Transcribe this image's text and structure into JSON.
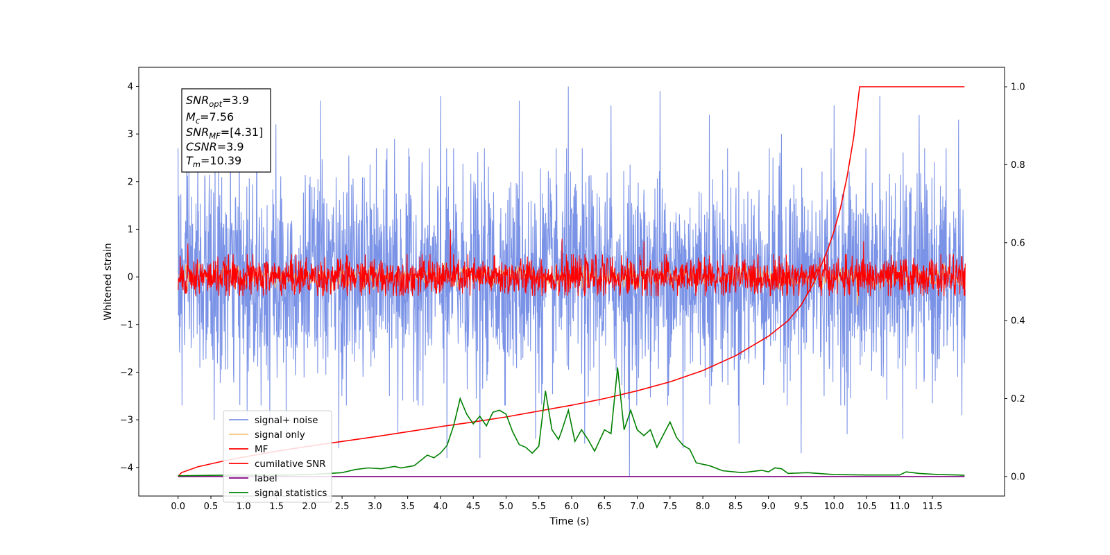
{
  "chart_data": {
    "type": "line",
    "xlabel": "Time (s)",
    "ylabel": "Whitened strain",
    "xlim": [
      -0.6,
      12.6
    ],
    "ylim": [
      -4.6,
      4.4
    ],
    "y2lim": [
      -0.05,
      1.05
    ],
    "x_ticks": [
      "0.0",
      "0.5",
      "1.0",
      "1.5",
      "2.0",
      "2.5",
      "3.0",
      "3.5",
      "4.0",
      "4.5",
      "5.0",
      "5.5",
      "6.0",
      "6.5",
      "7.0",
      "7.5",
      "8.0",
      "8.5",
      "9.0",
      "9.5",
      "10.0",
      "10.5",
      "11.0",
      "11.5"
    ],
    "y_ticks": [
      "−4",
      "−3",
      "−2",
      "−1",
      "0",
      "1",
      "2",
      "3",
      "4"
    ],
    "y2_ticks": [
      "0.0",
      "0.2",
      "0.4",
      "0.6",
      "0.8",
      "1.0"
    ],
    "grid": false,
    "legend_position": "lower-left",
    "info_box": {
      "snr_opt_var": "SNR",
      "snr_opt_sub": "opt",
      "snr_opt_value": "=3.9",
      "mc_var": "M",
      "mc_sub": "c",
      "mc_value": "=7.56",
      "snr_mf_var": "SNR",
      "snr_mf_sub": "MF",
      "snr_mf_value": "=[4.31]",
      "csnr_var": "CSNR",
      "csnr_value": "=3.9",
      "tm_var": "T",
      "tm_sub": "m",
      "tm_value": "=10.39"
    },
    "series": [
      {
        "name": "signal+ noise",
        "color": "#7b93e6",
        "axis": "left",
        "description_stats": {
          "t_start": 0.0,
          "t_end": 12.0,
          "typical_band": [
            -2.6,
            2.6
          ],
          "extremes": [
            -4.2,
            4.0
          ]
        },
        "peaks": [
          {
            "x": 0.0,
            "y": 2.7
          },
          {
            "x": 0.06,
            "y": -2.7
          },
          {
            "x": 0.3,
            "y": 3.0
          },
          {
            "x": 0.55,
            "y": -3.0
          },
          {
            "x": 0.8,
            "y": 3.0
          },
          {
            "x": 1.05,
            "y": -2.9
          },
          {
            "x": 1.2,
            "y": 3.4
          },
          {
            "x": 1.4,
            "y": -3.1
          },
          {
            "x": 1.49,
            "y": 3.2
          },
          {
            "x": 1.65,
            "y": -3.3
          },
          {
            "x": 2.17,
            "y": 3.7
          },
          {
            "x": 2.45,
            "y": -3.6
          },
          {
            "x": 3.3,
            "y": 2.9
          },
          {
            "x": 3.35,
            "y": -3.3
          },
          {
            "x": 4.0,
            "y": 3.8
          },
          {
            "x": 4.1,
            "y": -3.8
          },
          {
            "x": 4.6,
            "y": 3.9
          },
          {
            "x": 4.6,
            "y": -3.8
          },
          {
            "x": 5.2,
            "y": 3.7
          },
          {
            "x": 5.45,
            "y": -3.4
          },
          {
            "x": 5.95,
            "y": 4.0
          },
          {
            "x": 6.2,
            "y": -3.5
          },
          {
            "x": 6.6,
            "y": 3.6
          },
          {
            "x": 6.88,
            "y": -4.2
          },
          {
            "x": 7.35,
            "y": 3.9
          },
          {
            "x": 7.7,
            "y": -3.6
          },
          {
            "x": 8.1,
            "y": 3.4
          },
          {
            "x": 8.55,
            "y": -3.5
          },
          {
            "x": 9.2,
            "y": 3.0
          },
          {
            "x": 9.5,
            "y": -3.7
          },
          {
            "x": 10.0,
            "y": 3.6
          },
          {
            "x": 10.2,
            "y": -3.3
          },
          {
            "x": 10.7,
            "y": 3.8
          },
          {
            "x": 11.05,
            "y": -3.4
          },
          {
            "x": 11.3,
            "y": 3.4
          },
          {
            "x": 11.9,
            "y": 3.3
          },
          {
            "x": 11.95,
            "y": -2.9
          }
        ]
      },
      {
        "name": "signal only",
        "color": "#f5c67a",
        "axis": "left",
        "description_stats": {
          "t_start": 0.0,
          "t_end": 12.0,
          "typical_band": [
            -0.3,
            0.3
          ]
        },
        "peaks": [
          {
            "x": 10.35,
            "y": -0.6
          }
        ]
      },
      {
        "name": "MF",
        "color": "#ff0000",
        "axis": "left",
        "description_stats": {
          "t_start": 0.0,
          "t_end": 12.0,
          "typical_band": [
            -0.4,
            0.5
          ],
          "extremes": [
            -0.5,
            1.0
          ]
        },
        "peaks": [
          {
            "x": 0.15,
            "y": 0.7
          },
          {
            "x": 4.15,
            "y": 1.0
          },
          {
            "x": 5.85,
            "y": 0.8
          },
          {
            "x": 7.1,
            "y": 0.75
          },
          {
            "x": 10.45,
            "y": 0.75
          }
        ]
      },
      {
        "name": "cumilative SNR",
        "color": "#ff0000",
        "axis": "right",
        "points": [
          [
            0.0,
            0.0
          ],
          [
            0.05,
            0.01
          ],
          [
            0.3,
            0.025
          ],
          [
            0.7,
            0.04
          ],
          [
            1.0,
            0.05
          ],
          [
            1.5,
            0.065
          ],
          [
            2.0,
            0.078
          ],
          [
            2.5,
            0.09
          ],
          [
            3.0,
            0.102
          ],
          [
            3.5,
            0.115
          ],
          [
            4.0,
            0.128
          ],
          [
            4.5,
            0.14
          ],
          [
            5.0,
            0.153
          ],
          [
            5.5,
            0.168
          ],
          [
            6.0,
            0.183
          ],
          [
            6.5,
            0.2
          ],
          [
            7.0,
            0.22
          ],
          [
            7.5,
            0.243
          ],
          [
            8.0,
            0.272
          ],
          [
            8.5,
            0.31
          ],
          [
            9.0,
            0.36
          ],
          [
            9.3,
            0.4
          ],
          [
            9.5,
            0.44
          ],
          [
            9.7,
            0.5
          ],
          [
            9.9,
            0.58
          ],
          [
            10.0,
            0.63
          ],
          [
            10.1,
            0.69
          ],
          [
            10.2,
            0.77
          ],
          [
            10.3,
            0.87
          ],
          [
            10.39,
            1.0
          ],
          [
            11.5,
            1.0
          ],
          [
            11.99,
            1.0
          ]
        ]
      },
      {
        "name": "label",
        "color": "#800080",
        "axis": "right",
        "points": [
          [
            0.0,
            0.0
          ],
          [
            11.99,
            0.0
          ]
        ]
      },
      {
        "name": "signal statistics",
        "color": "#008000",
        "axis": "right",
        "points": [
          [
            0.0,
            0.002
          ],
          [
            0.5,
            0.003
          ],
          [
            1.0,
            0.004
          ],
          [
            1.5,
            0.003
          ],
          [
            2.0,
            0.005
          ],
          [
            2.5,
            0.01
          ],
          [
            2.7,
            0.018
          ],
          [
            2.9,
            0.022
          ],
          [
            3.1,
            0.02
          ],
          [
            3.3,
            0.026
          ],
          [
            3.4,
            0.022
          ],
          [
            3.6,
            0.028
          ],
          [
            3.8,
            0.055
          ],
          [
            3.9,
            0.048
          ],
          [
            4.0,
            0.06
          ],
          [
            4.1,
            0.08
          ],
          [
            4.2,
            0.13
          ],
          [
            4.3,
            0.2
          ],
          [
            4.4,
            0.16
          ],
          [
            4.5,
            0.135
          ],
          [
            4.6,
            0.155
          ],
          [
            4.7,
            0.13
          ],
          [
            4.8,
            0.165
          ],
          [
            4.9,
            0.17
          ],
          [
            5.0,
            0.16
          ],
          [
            5.1,
            0.115
          ],
          [
            5.2,
            0.082
          ],
          [
            5.3,
            0.075
          ],
          [
            5.4,
            0.06
          ],
          [
            5.5,
            0.078
          ],
          [
            5.6,
            0.22
          ],
          [
            5.7,
            0.12
          ],
          [
            5.8,
            0.095
          ],
          [
            5.85,
            0.118
          ],
          [
            5.95,
            0.17
          ],
          [
            6.05,
            0.09
          ],
          [
            6.15,
            0.12
          ],
          [
            6.25,
            0.095
          ],
          [
            6.35,
            0.065
          ],
          [
            6.5,
            0.12
          ],
          [
            6.6,
            0.11
          ],
          [
            6.7,
            0.28
          ],
          [
            6.8,
            0.12
          ],
          [
            6.9,
            0.17
          ],
          [
            7.0,
            0.12
          ],
          [
            7.1,
            0.105
          ],
          [
            7.2,
            0.12
          ],
          [
            7.3,
            0.075
          ],
          [
            7.4,
            0.108
          ],
          [
            7.5,
            0.14
          ],
          [
            7.6,
            0.1
          ],
          [
            7.7,
            0.08
          ],
          [
            7.8,
            0.07
          ],
          [
            7.9,
            0.035
          ],
          [
            8.1,
            0.028
          ],
          [
            8.3,
            0.015
          ],
          [
            8.6,
            0.01
          ],
          [
            8.9,
            0.016
          ],
          [
            9.0,
            0.012
          ],
          [
            9.1,
            0.022
          ],
          [
            9.2,
            0.02
          ],
          [
            9.3,
            0.008
          ],
          [
            9.6,
            0.01
          ],
          [
            10.0,
            0.005
          ],
          [
            10.5,
            0.004
          ],
          [
            11.0,
            0.004
          ],
          [
            11.1,
            0.012
          ],
          [
            11.3,
            0.008
          ],
          [
            11.6,
            0.005
          ],
          [
            11.9,
            0.004
          ],
          [
            11.99,
            0.003
          ]
        ]
      }
    ]
  }
}
